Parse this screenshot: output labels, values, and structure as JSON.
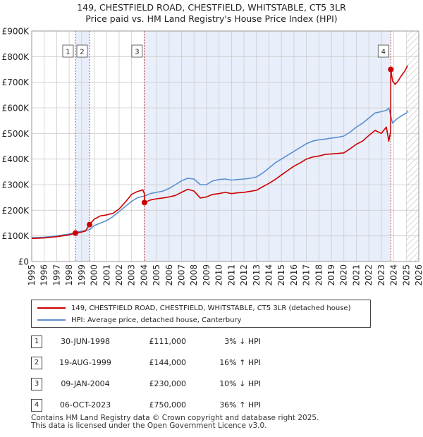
{
  "title_line1": "149, CHESTFIELD ROAD, CHESTFIELD, WHITSTABLE, CT5 3LR",
  "title_line2": "Price paid vs. HM Land Registry's House Price Index (HPI)",
  "legend": {
    "property_label": "149, CHESTFIELD ROAD, CHESTFIELD, WHITSTABLE, CT5 3LR (detached house)",
    "hpi_label": "HPI: Average price, detached house, Canterbury"
  },
  "sales": [
    {
      "num": "1",
      "date": "30-JUN-1998",
      "price": "£111,000",
      "hpi_diff": "3% ↓ HPI"
    },
    {
      "num": "2",
      "date": "19-AUG-1999",
      "price": "£144,000",
      "hpi_diff": "16% ↑ HPI"
    },
    {
      "num": "3",
      "date": "09-JAN-2004",
      "price": "£230,000",
      "hpi_diff": "10% ↓ HPI"
    },
    {
      "num": "4",
      "date": "06-OCT-2023",
      "price": "£750,000",
      "hpi_diff": "36% ↑ HPI"
    }
  ],
  "footer_line1": "Contains HM Land Registry data © Crown copyright and database right 2025.",
  "footer_line2": "This data is licensed under the Open Government Licence v3.0.",
  "colors": {
    "property": "#cc0000",
    "hpi": "#5b8fd1",
    "shade": "#e8eefa",
    "grid": "#cccccc"
  },
  "chart_data": {
    "type": "line",
    "xlabel": "",
    "ylabel": "",
    "xlim": [
      1995,
      2026
    ],
    "ylim": [
      0,
      900000
    ],
    "yticks": [
      0,
      100000,
      200000,
      300000,
      400000,
      500000,
      600000,
      700000,
      800000,
      900000
    ],
    "ytick_labels": [
      "£0",
      "£100K",
      "£200K",
      "£300K",
      "£400K",
      "£500K",
      "£600K",
      "£700K",
      "£800K",
      "£900K"
    ],
    "xticks": [
      1995,
      1996,
      1997,
      1998,
      1999,
      2000,
      2001,
      2002,
      2003,
      2004,
      2005,
      2006,
      2007,
      2008,
      2009,
      2010,
      2011,
      2012,
      2013,
      2014,
      2015,
      2016,
      2017,
      2018,
      2019,
      2020,
      2021,
      2022,
      2023,
      2024,
      2025,
      2026
    ],
    "xtick_labels": [
      "1995",
      "1996",
      "1997",
      "1998",
      "1999",
      "2000",
      "2001",
      "2002",
      "2003",
      "2004",
      "2005",
      "2006",
      "2007",
      "2008",
      "2009",
      "2010",
      "2011",
      "2012",
      "2013",
      "2014",
      "2015",
      "2016",
      "2017",
      "2018",
      "2019",
      "2020",
      "2021",
      "2022",
      "2023",
      "2024",
      "2025",
      "2026"
    ],
    "shaded_periods": [
      [
        1998.5,
        1999.63
      ],
      [
        2004.03,
        2023.76
      ]
    ],
    "hatch_from": 2025.0,
    "series": [
      {
        "name": "149, CHESTFIELD ROAD, CHESTFIELD, WHITSTABLE, CT5 3LR (detached house)",
        "x": [
          1995.0,
          1996.0,
          1997.0,
          1998.0,
          1998.5,
          1998.9,
          1999.3,
          1999.63,
          2000.0,
          2000.5,
          2001.0,
          2001.5,
          2002.0,
          2002.5,
          2003.0,
          2003.4,
          2003.9,
          2004.02,
          2004.03,
          2004.5,
          2005.0,
          2005.5,
          2006.0,
          2006.5,
          2007.0,
          2007.5,
          2008.0,
          2008.5,
          2009.0,
          2009.5,
          2010.0,
          2010.5,
          2011.0,
          2011.5,
          2012.0,
          2012.5,
          2013.0,
          2013.5,
          2014.0,
          2014.5,
          2015.0,
          2015.5,
          2016.0,
          2016.5,
          2017.0,
          2017.5,
          2018.0,
          2018.5,
          2019.0,
          2019.5,
          2020.0,
          2020.5,
          2021.0,
          2021.5,
          2022.0,
          2022.5,
          2023.0,
          2023.4,
          2023.6,
          2023.75,
          2023.76,
          2023.9,
          2024.1,
          2024.3,
          2024.6,
          2024.9,
          2025.1
        ],
        "values": [
          90000,
          92000,
          97000,
          104000,
          111000,
          114000,
          119000,
          144000,
          165000,
          178000,
          182000,
          188000,
          205000,
          232000,
          262000,
          272000,
          280000,
          265000,
          230000,
          240000,
          245000,
          248000,
          252000,
          258000,
          270000,
          282000,
          275000,
          248000,
          252000,
          262000,
          265000,
          270000,
          265000,
          268000,
          270000,
          274000,
          278000,
          292000,
          305000,
          320000,
          338000,
          355000,
          372000,
          385000,
          400000,
          408000,
          412000,
          418000,
          420000,
          422000,
          424000,
          440000,
          458000,
          470000,
          492000,
          512000,
          500000,
          525000,
          470000,
          510000,
          750000,
          705000,
          692000,
          702000,
          725000,
          745000,
          765000
        ]
      },
      {
        "name": "HPI: Average price, detached house, Canterbury",
        "x": [
          1995.0,
          1996.0,
          1997.0,
          1998.0,
          1998.5,
          1999.0,
          1999.63,
          2000.0,
          2000.5,
          2001.0,
          2001.5,
          2002.0,
          2002.5,
          2003.0,
          2003.5,
          2004.0,
          2004.5,
          2005.0,
          2005.5,
          2006.0,
          2006.5,
          2007.0,
          2007.5,
          2008.0,
          2008.5,
          2009.0,
          2009.5,
          2010.0,
          2010.5,
          2011.0,
          2011.5,
          2012.0,
          2012.5,
          2013.0,
          2013.5,
          2014.0,
          2014.5,
          2015.0,
          2015.5,
          2016.0,
          2016.5,
          2017.0,
          2017.5,
          2018.0,
          2018.5,
          2019.0,
          2019.5,
          2020.0,
          2020.5,
          2021.0,
          2021.5,
          2022.0,
          2022.5,
          2023.0,
          2023.4,
          2023.6,
          2023.9,
          2024.2,
          2024.6,
          2025.0,
          2025.1
        ],
        "values": [
          93000,
          95000,
          100000,
          107000,
          114000,
          118000,
          124000,
          140000,
          150000,
          160000,
          175000,
          195000,
          215000,
          235000,
          250000,
          255000,
          265000,
          270000,
          275000,
          285000,
          300000,
          315000,
          325000,
          322000,
          300000,
          300000,
          315000,
          320000,
          322000,
          318000,
          320000,
          322000,
          325000,
          330000,
          345000,
          365000,
          385000,
          400000,
          415000,
          430000,
          445000,
          460000,
          470000,
          475000,
          478000,
          482000,
          485000,
          490000,
          505000,
          525000,
          540000,
          560000,
          580000,
          585000,
          590000,
          600000,
          540000,
          555000,
          568000,
          580000,
          590000
        ]
      }
    ],
    "sale_points": [
      {
        "label": "1",
        "x": 1998.5,
        "y": 111000
      },
      {
        "label": "2",
        "x": 1999.63,
        "y": 144000
      },
      {
        "label": "3",
        "x": 2004.03,
        "y": 230000
      },
      {
        "label": "4",
        "x": 2023.76,
        "y": 750000
      }
    ]
  }
}
